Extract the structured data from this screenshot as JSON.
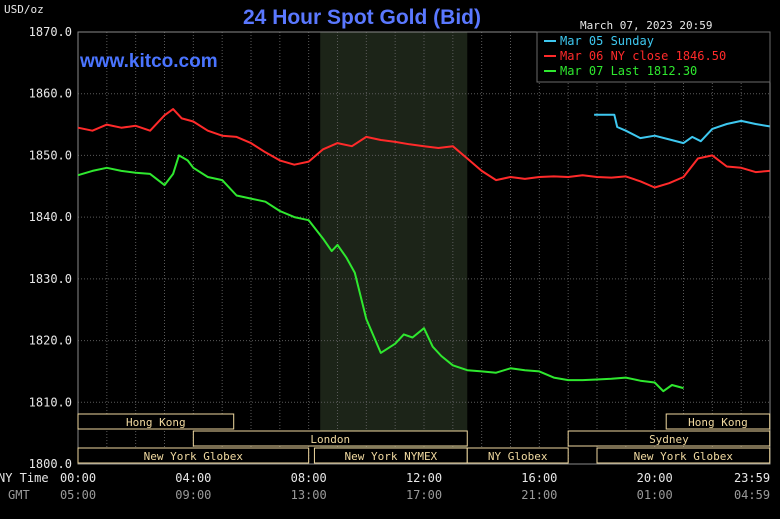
{
  "header": {
    "unit": "USD/oz",
    "title": "24 Hour Spot Gold (Bid)",
    "timestamp": "March 07, 2023 20:59",
    "website": "www.kitco.com"
  },
  "axis_labels": {
    "ny_time": "NY Time",
    "gmt": "GMT"
  },
  "colors": {
    "today": "#2fe82f",
    "prev": "#ff2a2a",
    "sunday": "#3ec8f0",
    "grid": "#5a5a5a",
    "session_text": "#f0d9a0"
  },
  "sessions": [
    {
      "label": "Hong Kong",
      "start": 0,
      "end": 5.4,
      "row": 0
    },
    {
      "label": "Hong Kong",
      "start": 20.4,
      "end": 23.99,
      "row": 0
    },
    {
      "label": "London",
      "start": 4.0,
      "end": 13.5,
      "row": 1
    },
    {
      "label": "Sydney",
      "start": 17.0,
      "end": 23.99,
      "row": 1
    },
    {
      "label": "New York Globex",
      "start": 0,
      "end": 8.0,
      "row": 2
    },
    {
      "label": "New York NYMEX",
      "start": 8.2,
      "end": 13.5,
      "row": 2
    },
    {
      "label": "NY Globex",
      "start": 13.5,
      "end": 17.0,
      "row": 2
    },
    {
      "label": "New York Globex",
      "start": 18.0,
      "end": 23.99,
      "row": 2
    }
  ],
  "chart_data": {
    "type": "line",
    "title": "24 Hour Spot Gold (Bid)",
    "ylabel": "USD/oz",
    "ylim": [
      1800,
      1870
    ],
    "yticks": [
      "1800.0",
      "1810.0",
      "1820.0",
      "1830.0",
      "1840.0",
      "1850.0",
      "1860.0",
      "1870.0"
    ],
    "xlim": [
      0,
      24
    ],
    "xticks": [
      {
        "x": 0,
        "ny": "00:00",
        "gmt": "05:00"
      },
      {
        "x": 4,
        "ny": "04:00",
        "gmt": "09:00"
      },
      {
        "x": 8,
        "ny": "08:00",
        "gmt": "13:00"
      },
      {
        "x": 12,
        "ny": "12:00",
        "gmt": "17:00"
      },
      {
        "x": 16,
        "ny": "16:00",
        "gmt": "21:00"
      },
      {
        "x": 20,
        "ny": "20:00",
        "gmt": "01:00"
      },
      {
        "x": 24,
        "ny": "23:59",
        "gmt": "04:59"
      }
    ],
    "shaded_region": [
      8.4,
      13.5
    ],
    "legend_position": "top-right",
    "series": [
      {
        "name": "Mar 05 Sunday",
        "legend": "Mar 05 Sunday",
        "color": "#3ec8f0",
        "x": [
          17.9,
          18.6,
          18.7,
          19.0,
          19.5,
          20.0,
          20.5,
          21.0,
          21.3,
          21.6,
          22.0,
          22.5,
          23.0,
          23.5,
          23.99
        ],
        "y": [
          1856.6,
          1856.6,
          1854.6,
          1854.0,
          1852.8,
          1853.2,
          1852.6,
          1852.0,
          1853.0,
          1852.3,
          1854.3,
          1855.1,
          1855.6,
          1855.1,
          1854.7
        ]
      },
      {
        "name": "Mar 06 NY close",
        "legend": "Mar 06 NY close 1846.50",
        "color": "#ff2a2a",
        "x": [
          0,
          0.5,
          1.0,
          1.5,
          2.0,
          2.5,
          3.0,
          3.3,
          3.6,
          4.0,
          4.5,
          5.0,
          5.5,
          6.0,
          6.5,
          7.0,
          7.5,
          8.0,
          8.5,
          9.0,
          9.5,
          10.0,
          10.5,
          11.0,
          11.5,
          12.0,
          12.5,
          13.0,
          13.5,
          14.0,
          14.5,
          15.0,
          15.5,
          16.0,
          16.5,
          17.0,
          17.5,
          18.0,
          18.5,
          19.0,
          19.5,
          20.0,
          20.5,
          21.0,
          21.5,
          22.0,
          22.5,
          23.0,
          23.5,
          23.99
        ],
        "y": [
          1854.5,
          1854.0,
          1855.0,
          1854.5,
          1854.8,
          1854.0,
          1856.5,
          1857.5,
          1856.0,
          1855.5,
          1854.0,
          1853.2,
          1853.0,
          1852.0,
          1850.5,
          1849.2,
          1848.5,
          1849.0,
          1851.0,
          1852.0,
          1851.5,
          1853.0,
          1852.5,
          1852.2,
          1851.8,
          1851.5,
          1851.2,
          1851.5,
          1849.5,
          1847.5,
          1846.0,
          1846.5,
          1846.2,
          1846.5,
          1846.6,
          1846.5,
          1846.8,
          1846.5,
          1846.4,
          1846.6,
          1845.8,
          1844.8,
          1845.5,
          1846.5,
          1849.5,
          1850.0,
          1848.2,
          1848.0,
          1847.3,
          1847.5
        ]
      },
      {
        "name": "Mar 07 Last",
        "legend": "Mar 07 Last 1812.30",
        "color": "#2fe82f",
        "x": [
          0,
          0.5,
          1.0,
          1.5,
          2.0,
          2.5,
          3.0,
          3.3,
          3.5,
          3.8,
          4.0,
          4.5,
          5.0,
          5.5,
          6.0,
          6.5,
          7.0,
          7.5,
          8.0,
          8.5,
          8.8,
          9.0,
          9.3,
          9.6,
          10.0,
          10.5,
          11.0,
          11.3,
          11.6,
          12.0,
          12.3,
          12.6,
          13.0,
          13.5,
          14.0,
          14.5,
          15.0,
          15.5,
          16.0,
          16.5,
          17.0,
          17.5,
          18.0,
          18.5,
          19.0,
          19.5,
          20.0,
          20.3,
          20.6,
          21.0
        ],
        "y": [
          1846.8,
          1847.5,
          1848.0,
          1847.5,
          1847.2,
          1847.0,
          1845.2,
          1847.0,
          1850.0,
          1849.2,
          1848.0,
          1846.5,
          1846.0,
          1843.5,
          1843.0,
          1842.5,
          1841.0,
          1840.0,
          1839.5,
          1836.5,
          1834.5,
          1835.5,
          1833.5,
          1831.0,
          1823.5,
          1818.0,
          1819.5,
          1821.0,
          1820.5,
          1822.0,
          1819.0,
          1817.5,
          1816.0,
          1815.2,
          1815.0,
          1814.8,
          1815.5,
          1815.2,
          1815.0,
          1814.0,
          1813.6,
          1813.6,
          1813.7,
          1813.8,
          1814.0,
          1813.5,
          1813.2,
          1811.8,
          1812.8,
          1812.3
        ]
      }
    ]
  }
}
